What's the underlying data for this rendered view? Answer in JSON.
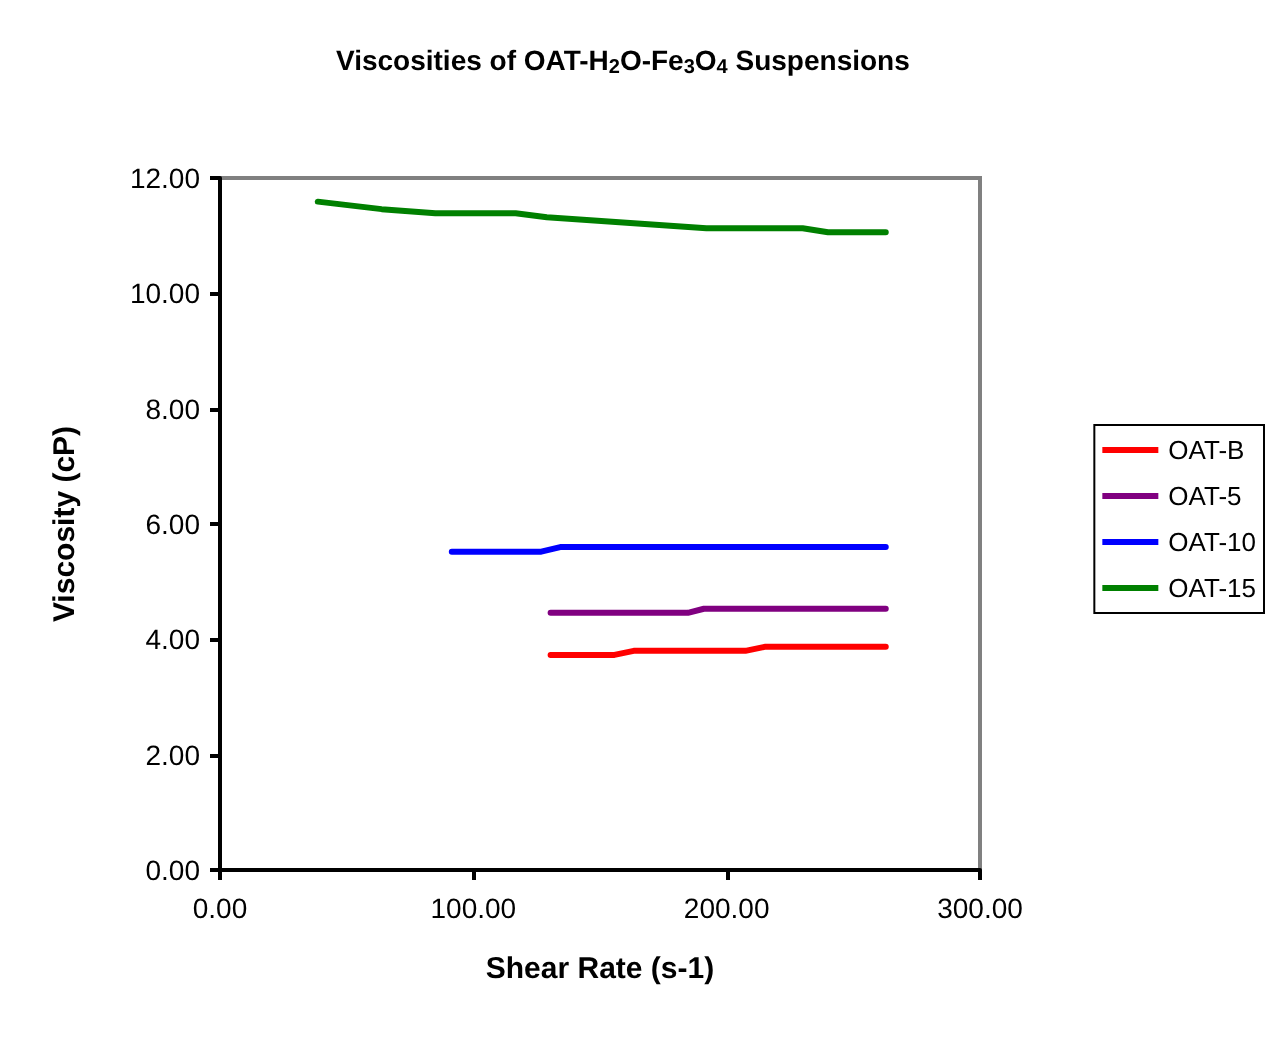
{
  "chart_data": {
    "type": "line",
    "title": "Viscosities of OAT-H$_{2}$O-Fe$_{3}$O$_{4}$ Suspensions",
    "xlabel": "Shear Rate (s-1)",
    "ylabel": "Viscosity (cP)",
    "xlim": [
      0,
      300
    ],
    "xticks": [
      {
        "value": 0,
        "label": "0.00"
      },
      {
        "value": 100,
        "label": "100.00"
      },
      {
        "value": 200,
        "label": "200.00"
      },
      {
        "value": 300,
        "label": "300.00"
      }
    ],
    "ylim": [
      0,
      12
    ],
    "yticks": [
      {
        "value": 0,
        "label": "0.00"
      },
      {
        "value": 2,
        "label": "2.00"
      },
      {
        "value": 4,
        "label": "4.00"
      },
      {
        "value": 6,
        "label": "6.00"
      },
      {
        "value": 8,
        "label": "8.00"
      },
      {
        "value": 10,
        "label": "10.00"
      },
      {
        "value": 12,
        "label": "12.00"
      }
    ],
    "grid": false,
    "legend": "right",
    "marker": "none",
    "line_style": "solid",
    "series": [
      {
        "name": "OAT-B",
        "color": "#ff0000",
        "x": [
          130.5,
          155.7,
          163.3,
          207.4,
          215,
          262.8
        ],
        "values": [
          3.73,
          3.73,
          3.8,
          3.8,
          3.87,
          3.87
        ]
      },
      {
        "name": "OAT-5",
        "color": "#800080",
        "x": [
          130.5,
          184.7,
          191,
          262.8
        ],
        "values": [
          4.46,
          4.46,
          4.53,
          4.53
        ]
      },
      {
        "name": "OAT-10",
        "color": "#0000ff",
        "x": [
          91.5,
          126.8,
          134.3,
          262.8
        ],
        "values": [
          5.52,
          5.52,
          5.6,
          5.6
        ]
      },
      {
        "name": "OAT-15",
        "color": "#008000",
        "x": [
          38.6,
          63.8,
          85,
          116.7,
          129,
          192,
          230,
          240,
          262.8
        ],
        "values": [
          11.59,
          11.46,
          11.39,
          11.39,
          11.32,
          11.13,
          11.13,
          11.06,
          11.06
        ]
      }
    ]
  }
}
